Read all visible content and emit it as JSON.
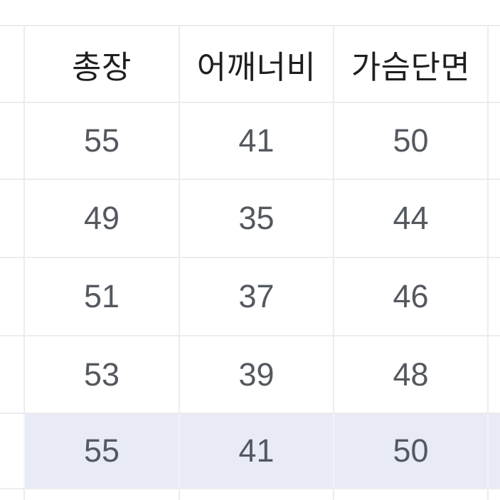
{
  "table": {
    "headers": [
      "총장",
      "어깨너비",
      "가슴단면"
    ],
    "rows": [
      {
        "values": [
          "55",
          "41",
          "50"
        ],
        "highlighted": false
      },
      {
        "values": [
          "49",
          "35",
          "44"
        ],
        "highlighted": false
      },
      {
        "values": [
          "51",
          "37",
          "46"
        ],
        "highlighted": false
      },
      {
        "values": [
          "53",
          "39",
          "48"
        ],
        "highlighted": false
      },
      {
        "values": [
          "55",
          "41",
          "50"
        ],
        "highlighted": true
      }
    ]
  },
  "colors": {
    "background": "#ffffff",
    "border": "#ececec",
    "header_text": "#1f1f1f",
    "cell_text": "#54585f",
    "highlight_row": "#e8ebf6"
  }
}
